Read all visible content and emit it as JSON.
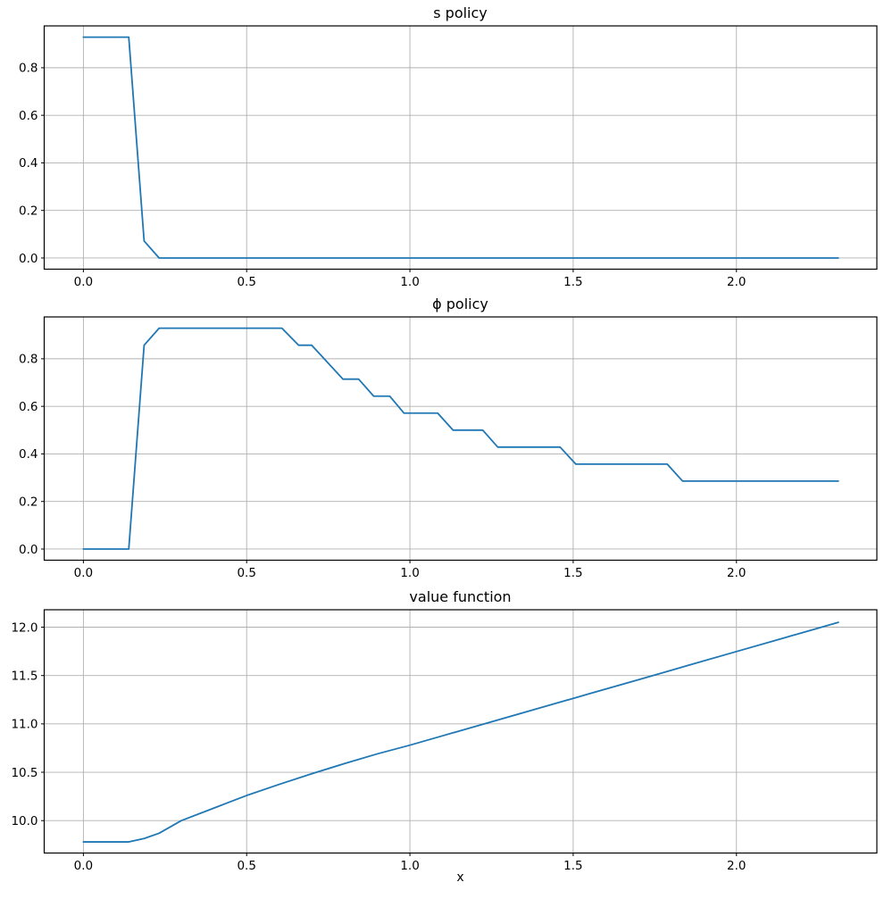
{
  "figure": {
    "background": "#ffffff",
    "line_color": "#1f77b4",
    "grid_color": "#b0b0b0",
    "spine_color": "#000000",
    "text_color": "#000000",
    "xlabel": "x"
  },
  "chart_data": [
    {
      "type": "line",
      "title": "s policy",
      "xlim": [
        -0.12,
        2.43
      ],
      "ylim": [
        -0.047,
        0.976
      ],
      "xticks": [
        0.0,
        0.5,
        1.0,
        1.5,
        2.0
      ],
      "xtick_labels": [
        "0.0",
        "0.5",
        "1.0",
        "1.5",
        "2.0"
      ],
      "yticks": [
        0.0,
        0.2,
        0.4,
        0.6,
        0.8
      ],
      "ytick_labels": [
        "0.0",
        "0.2",
        "0.4",
        "0.6",
        "0.8"
      ],
      "grid": true,
      "legend": null,
      "series": [
        {
          "name": "s policy",
          "color": "#1f77b4",
          "x": [
            0.0,
            0.139,
            0.186,
            0.232,
            2.312
          ],
          "y": [
            0.9286,
            0.9286,
            0.0714,
            0.0,
            0.0
          ]
        }
      ]
    },
    {
      "type": "line",
      "title": "ϕ policy",
      "xlim": [
        -0.12,
        2.43
      ],
      "ylim": [
        -0.047,
        0.976
      ],
      "xticks": [
        0.0,
        0.5,
        1.0,
        1.5,
        2.0
      ],
      "xtick_labels": [
        "0.0",
        "0.5",
        "1.0",
        "1.5",
        "2.0"
      ],
      "yticks": [
        0.0,
        0.2,
        0.4,
        0.6,
        0.8
      ],
      "ytick_labels": [
        "0.0",
        "0.2",
        "0.4",
        "0.6",
        "0.8"
      ],
      "grid": true,
      "legend": null,
      "series": [
        {
          "name": "phi policy",
          "color": "#1f77b4",
          "x": [
            0.0,
            0.139,
            0.186,
            0.232,
            0.608,
            0.659,
            0.699,
            0.795,
            0.843,
            0.889,
            0.938,
            0.982,
            1.085,
            1.132,
            1.223,
            1.269,
            1.46,
            1.508,
            1.788,
            1.835,
            2.312
          ],
          "y": [
            0.0,
            0.0,
            0.8571,
            0.9286,
            0.9286,
            0.8571,
            0.8571,
            0.7143,
            0.7143,
            0.6429,
            0.6429,
            0.5714,
            0.5714,
            0.5,
            0.5,
            0.4286,
            0.4286,
            0.3571,
            0.3571,
            0.2857,
            0.2857
          ]
        }
      ]
    },
    {
      "type": "line",
      "title": "value function",
      "xlabel": "x",
      "xlim": [
        -0.12,
        2.43
      ],
      "ylim": [
        9.665,
        12.18
      ],
      "xticks": [
        0.0,
        0.5,
        1.0,
        1.5,
        2.0
      ],
      "xtick_labels": [
        "0.0",
        "0.5",
        "1.0",
        "1.5",
        "2.0"
      ],
      "yticks": [
        10.0,
        10.5,
        11.0,
        11.5,
        12.0
      ],
      "ytick_labels": [
        "10.0",
        "10.5",
        "11.0",
        "11.5",
        "12.0"
      ],
      "grid": true,
      "legend": null,
      "series": [
        {
          "name": "value function",
          "color": "#1f77b4",
          "x": [
            0.0,
            0.139,
            0.186,
            0.232,
            0.3,
            0.4,
            0.5,
            0.6,
            0.7,
            0.8,
            0.9,
            1.0,
            1.1,
            1.25,
            1.4,
            1.55,
            1.7,
            1.85,
            2.0,
            2.15,
            2.312
          ],
          "y": [
            9.78,
            9.78,
            9.815,
            9.87,
            10.0,
            10.13,
            10.26,
            10.375,
            10.485,
            10.59,
            10.69,
            10.78,
            10.877,
            11.022,
            11.167,
            11.312,
            11.457,
            11.603,
            11.748,
            11.893,
            12.05
          ]
        }
      ]
    }
  ]
}
